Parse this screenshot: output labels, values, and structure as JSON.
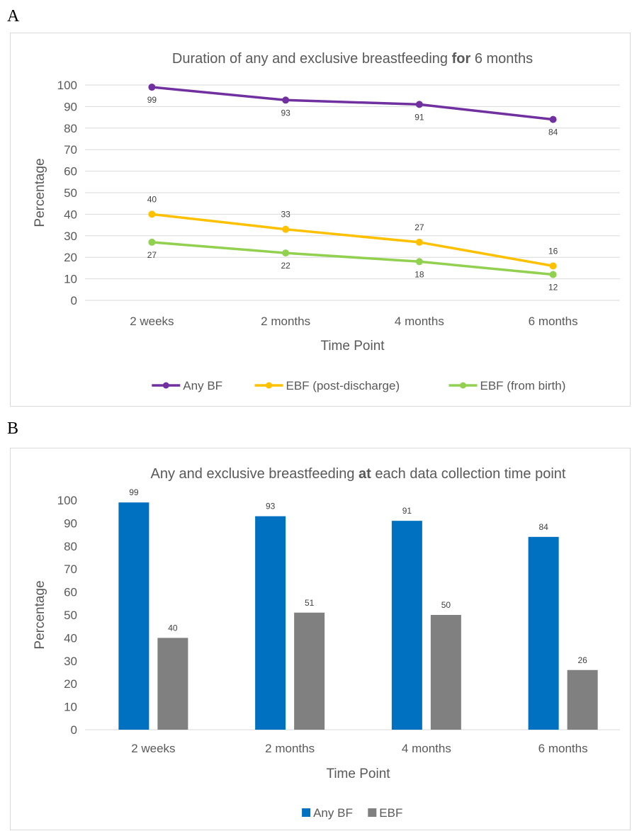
{
  "panels": {
    "a": "A",
    "b": "B"
  },
  "chart_data": [
    {
      "type": "line",
      "title_parts": [
        "Duration of any and exclusive breastfeeding ",
        "for",
        " 6 months"
      ],
      "categories": [
        "2 weeks",
        "2 months",
        "4 months",
        "6 months"
      ],
      "series": [
        {
          "name": "Any BF",
          "values": [
            99,
            93,
            91,
            84
          ],
          "color": "#7030a0"
        },
        {
          "name": "EBF (post-discharge)",
          "values": [
            40,
            33,
            27,
            16
          ],
          "color": "#ffc000"
        },
        {
          "name": "EBF (from birth)",
          "values": [
            27,
            22,
            18,
            12
          ],
          "color": "#92d050"
        }
      ],
      "xlabel": "Time Point",
      "ylabel": "Percentage",
      "ylim": [
        0,
        100
      ],
      "yticks": [
        0,
        10,
        20,
        30,
        40,
        50,
        60,
        70,
        80,
        90,
        100
      ],
      "grid": true,
      "legend": "bottom"
    },
    {
      "type": "bar",
      "title_parts": [
        "Any and exclusive breastfeeding ",
        "at",
        " each data collection time point"
      ],
      "categories": [
        "2 weeks",
        "2 months",
        "4 months",
        "6 months"
      ],
      "series": [
        {
          "name": "Any BF",
          "values": [
            99,
            93,
            91,
            84
          ],
          "color": "#0070c0"
        },
        {
          "name": "EBF",
          "values": [
            40,
            51,
            50,
            26
          ],
          "color": "#808080"
        }
      ],
      "xlabel": "Time Point",
      "ylabel": "Percentage",
      "ylim": [
        0,
        100
      ],
      "yticks": [
        0,
        10,
        20,
        30,
        40,
        50,
        60,
        70,
        80,
        90,
        100
      ],
      "grid": false,
      "legend": "bottom"
    }
  ]
}
